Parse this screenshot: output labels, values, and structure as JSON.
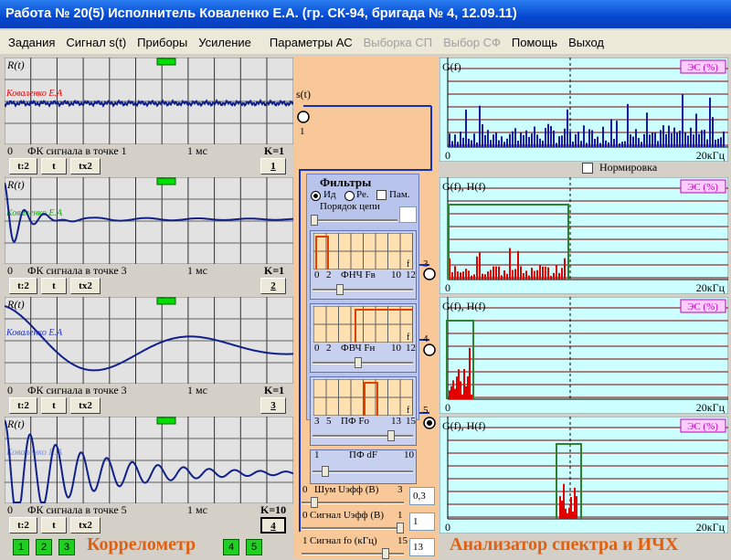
{
  "title": "Работа № 20(5)  Исполнитель Коваленко Е.А. (гр. СК-94, бригада № 4, 12.09.11)",
  "menu": [
    {
      "label": "Задания",
      "enabled": true
    },
    {
      "label": "Сигнал s(t)",
      "enabled": true
    },
    {
      "label": "Приборы",
      "enabled": true
    },
    {
      "label": "Усиление",
      "enabled": true
    },
    {
      "label": "Параметры АС",
      "enabled": true
    },
    {
      "label": "Выборка СП",
      "enabled": false
    },
    {
      "label": "Выбор СФ",
      "enabled": false
    },
    {
      "label": "Помощь",
      "enabled": true
    },
    {
      "label": "Выход",
      "enabled": true
    }
  ],
  "correlometer": {
    "label": "Коррелометр",
    "points": [
      "1",
      "2",
      "3",
      "4",
      "5"
    ],
    "panels": [
      {
        "y_label": "R(t)",
        "signature": "Коваленко Е.А",
        "x_start": "0",
        "caption": "ФК сигнала в точке 1",
        "x_end": "1 мс",
        "gain": "K=1",
        "buttons": [
          "t:2",
          "t",
          "tx2"
        ],
        "number": "1"
      },
      {
        "y_label": "R(t)",
        "signature": "Коваленко Е.А",
        "x_start": "0",
        "caption": "ФК сигнала в точке 3",
        "x_end": "1 мс",
        "gain": "K=1",
        "buttons": [
          "t:2",
          "t",
          "tx2"
        ],
        "number": "2"
      },
      {
        "y_label": "R(t)",
        "signature": "Коваленко Е.А",
        "x_start": "0",
        "caption": "ФК сигнала в точке 3",
        "x_end": "1 мс",
        "gain": "K=1",
        "buttons": [
          "t:2",
          "t",
          "tx2"
        ],
        "number": "3"
      },
      {
        "y_label": "R(t)",
        "signature": "Коваленко Е.А",
        "x_start": "0",
        "caption": "ФК сигнала в точке 5",
        "x_end": "1 мс",
        "gain": "K=10",
        "buttons": [
          "t:2",
          "t",
          "tx2"
        ],
        "number": "4"
      }
    ]
  },
  "circuit": {
    "signal_label": "s(t)",
    "input_point": "1",
    "outputs": [
      "3",
      "4",
      "5"
    ],
    "filters": {
      "title": "Фильтры",
      "ideal": "Ид",
      "real": "Ре.",
      "memory": "Пам.",
      "order": "Порядок цепи",
      "lowpass": {
        "ticks": [
          "0",
          "2",
          "10",
          "12"
        ],
        "label": "ФНЧ Fв",
        "axis": "f"
      },
      "highpass": {
        "ticks": [
          "0",
          "2",
          "10",
          "12"
        ],
        "label": "ФВЧ Fн",
        "axis": "f"
      },
      "bandpass": {
        "ticks": [
          "3",
          "5",
          "13",
          "15"
        ],
        "label": "ПФ Fo",
        "axis": "f"
      },
      "bandwidth": {
        "min": "1",
        "label": "ПФ dF",
        "max": "10"
      }
    },
    "controls": [
      {
        "min": "0",
        "label": "Шум Uэфф (В)",
        "max": "3",
        "value": "0,3"
      },
      {
        "min": "0",
        "label": "Сигнал Uэфф (В)",
        "max": "1",
        "value": "1"
      },
      {
        "min": "1",
        "label": "Сигнал fo (кГц)",
        "max": "15",
        "value": "13"
      }
    ]
  },
  "analyzer": {
    "label": "Анализатор спектра и ИЧХ",
    "normalize": "Нормировка",
    "panels": [
      {
        "y_label": "G(f)",
        "es": "ЭС (%)",
        "x_start": "0",
        "x_end": "20кГц"
      },
      {
        "y_label": "G(f), H(f)",
        "es": "ЭС (%)",
        "x_start": "0",
        "x_end": "20кГц"
      },
      {
        "y_label": "G(f), H(f)",
        "es": "ЭС (%)",
        "x_start": "0",
        "x_end": "20кГц"
      },
      {
        "y_label": "G(f), H(f)",
        "es": "ЭС (%)",
        "x_start": "0",
        "x_end": "20кГц"
      }
    ]
  }
}
